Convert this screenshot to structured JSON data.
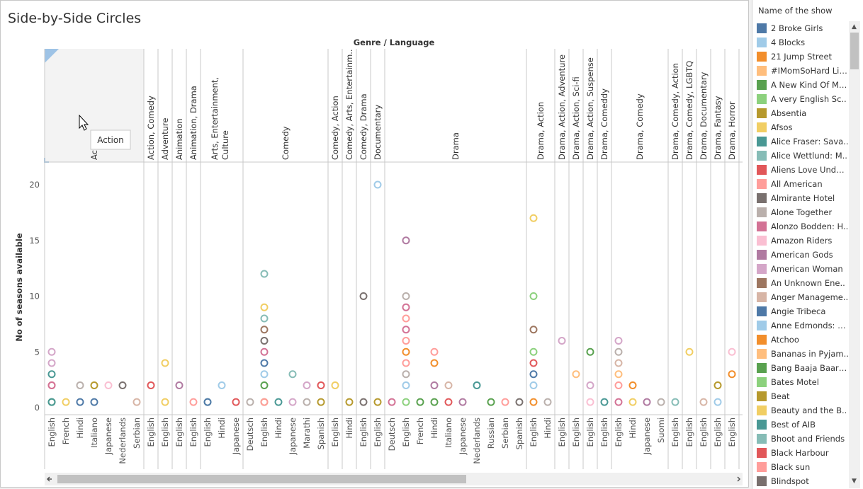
{
  "title": "Side-by-Side Circles",
  "tooltip": "Action",
  "legend": {
    "title": "Name of the show",
    "items": [
      {
        "label": "2 Broke Girls",
        "color": "#4e79a7"
      },
      {
        "label": "4 Blocks",
        "color": "#a0cbe8"
      },
      {
        "label": "21 Jump Street",
        "color": "#f28e2b"
      },
      {
        "label": "#IMomSoHard Live",
        "color": "#ffbe7d"
      },
      {
        "label": "A New Kind Of Ma..",
        "color": "#59a14f"
      },
      {
        "label": "A very English Sc..",
        "color": "#8cd17d"
      },
      {
        "label": "Absentia",
        "color": "#b6992d"
      },
      {
        "label": "Afsos",
        "color": "#f1ce63"
      },
      {
        "label": "Alice Fraser: Sava..",
        "color": "#499894"
      },
      {
        "label": "Alice Wettlund: M..",
        "color": "#86bcb6"
      },
      {
        "label": "Aliens Love Under..",
        "color": "#e15759"
      },
      {
        "label": "All American",
        "color": "#ff9d9a"
      },
      {
        "label": "Almirante Hotel",
        "color": "#79706e"
      },
      {
        "label": "Alone Together",
        "color": "#bab0ac"
      },
      {
        "label": "Alonzo Bodden: H..",
        "color": "#d37295"
      },
      {
        "label": "Amazon Riders",
        "color": "#fabfd2"
      },
      {
        "label": "American Gods",
        "color": "#b07aa1"
      },
      {
        "label": "American Woman",
        "color": "#d4a6c8"
      },
      {
        "label": "An Unknown Ene..",
        "color": "#9d7660"
      },
      {
        "label": "Anger Manageme..",
        "color": "#d7b5a6"
      },
      {
        "label": "Angie Tribeca",
        "color": "#4e79a7"
      },
      {
        "label": "Anne Edmonds: W..",
        "color": "#a0cbe8"
      },
      {
        "label": "Atchoo",
        "color": "#f28e2b"
      },
      {
        "label": "Bananas in Pyjam..",
        "color": "#ffbe7d"
      },
      {
        "label": "Bang Baaja Baara..",
        "color": "#59a14f"
      },
      {
        "label": "Bates Motel",
        "color": "#8cd17d"
      },
      {
        "label": "Beat",
        "color": "#b6992d"
      },
      {
        "label": "Beauty and the B..",
        "color": "#f1ce63"
      },
      {
        "label": "Best of AIB",
        "color": "#499894"
      },
      {
        "label": "Bhoot and Friends",
        "color": "#86bcb6"
      },
      {
        "label": "Black Harbour",
        "color": "#e15759"
      },
      {
        "label": "Black sun",
        "color": "#ff9d9a"
      },
      {
        "label": "Blindspot",
        "color": "#79706e"
      }
    ]
  },
  "chart_data": {
    "type": "scatter",
    "column_header_title": "Genre / Language",
    "ylabel": "No of seasons available",
    "ylim": [
      0,
      22
    ],
    "yticks": [
      0,
      5,
      10,
      15,
      20
    ],
    "groups": [
      {
        "genre": "Action",
        "header_text": "Ac",
        "languages": [
          "English",
          "French",
          "Hindi",
          "Italiano",
          "Japanese",
          "Nederlands",
          "Serbian"
        ]
      },
      {
        "genre": "Action, Comedy",
        "languages": [
          "English"
        ]
      },
      {
        "genre": "Adventure",
        "languages": [
          "English"
        ]
      },
      {
        "genre": "Animation",
        "languages": [
          "English"
        ]
      },
      {
        "genre": "Animation, Drama",
        "languages": [
          "English"
        ]
      },
      {
        "genre": "Arts, Entertainment, Culture",
        "lines": [
          "Arts, Entertainment,",
          "Culture"
        ],
        "languages": [
          "English",
          "Hindi",
          "Japanese"
        ]
      },
      {
        "genre": "Comedy",
        "languages": [
          "Deutsch",
          "English",
          "Hindi",
          "Japanese",
          "Marathi",
          "Spanish"
        ]
      },
      {
        "genre": "Comedy, Action",
        "languages": [
          "English"
        ]
      },
      {
        "genre": "Comedy, Arts, Entertainm..",
        "languages": [
          "Hindi"
        ]
      },
      {
        "genre": "Comedy, Drama",
        "languages": [
          "English"
        ]
      },
      {
        "genre": "Documentary",
        "languages": [
          "English"
        ]
      },
      {
        "genre": "Drama",
        "languages": [
          "Deutsch",
          "English",
          "French",
          "Hindi",
          "Italiano",
          "Japanese",
          "Nederlands",
          "Russian",
          "Serbian",
          "Spanish"
        ]
      },
      {
        "genre": "Drama, Action",
        "languages": [
          "English",
          "Hindi"
        ]
      },
      {
        "genre": "Drama, Action, Adventure",
        "languages": [
          "English"
        ]
      },
      {
        "genre": "Drama, Action, Sci-fi",
        "languages": [
          "English"
        ]
      },
      {
        "genre": "Drama, Action, Suspense",
        "languages": [
          "English"
        ]
      },
      {
        "genre": "Drama, Comeddy",
        "languages": [
          "English"
        ]
      },
      {
        "genre": "Drama, Comedy",
        "languages": [
          "English",
          "Hindi",
          "Japanese",
          "Suomi"
        ]
      },
      {
        "genre": "Drama, Comedy, Action",
        "languages": [
          "English"
        ]
      },
      {
        "genre": "Drama, Comedy, LGBTQ",
        "languages": [
          "English"
        ]
      },
      {
        "genre": "Drama, Documentary",
        "languages": [
          "English"
        ]
      },
      {
        "genre": "Drama, Fantasy",
        "languages": [
          "English"
        ]
      },
      {
        "genre": "Drama, Horror",
        "languages": [
          "English"
        ]
      }
    ],
    "points": [
      {
        "col": 0,
        "y": 5,
        "c": "#d4a6c8"
      },
      {
        "col": 0,
        "y": 4,
        "c": "#d4a6c8"
      },
      {
        "col": 0,
        "y": 3,
        "c": "#499894"
      },
      {
        "col": 0,
        "y": 2,
        "c": "#ff9d9a"
      },
      {
        "col": 0,
        "y": 2,
        "c": "#d37295"
      },
      {
        "col": 0,
        "y": 0.5,
        "c": "#59a14f"
      },
      {
        "col": 0,
        "y": 0.5,
        "c": "#499894"
      },
      {
        "col": 1,
        "y": 0.5,
        "c": "#f1ce63"
      },
      {
        "col": 2,
        "y": 0.5,
        "c": "#4e79a7"
      },
      {
        "col": 2,
        "y": 2,
        "c": "#bab0ac"
      },
      {
        "col": 3,
        "y": 0.5,
        "c": "#4e79a7"
      },
      {
        "col": 3,
        "y": 2,
        "c": "#b6992d"
      },
      {
        "col": 4,
        "y": 2,
        "c": "#fabfd2"
      },
      {
        "col": 5,
        "y": 2,
        "c": "#79706e"
      },
      {
        "col": 6,
        "y": 0.5,
        "c": "#d7b5a6"
      },
      {
        "col": 7,
        "y": 2,
        "c": "#e15759"
      },
      {
        "col": 8,
        "y": 4,
        "c": "#f1ce63"
      },
      {
        "col": 8,
        "y": 0.5,
        "c": "#f1ce63"
      },
      {
        "col": 9,
        "y": 2,
        "c": "#b07aa1"
      },
      {
        "col": 10,
        "y": 0.5,
        "c": "#ff9d9a"
      },
      {
        "col": 11,
        "y": 0.5,
        "c": "#86bcb6"
      },
      {
        "col": 11,
        "y": 0.5,
        "c": "#4e79a7"
      },
      {
        "col": 12,
        "y": 2,
        "c": "#a0cbe8"
      },
      {
        "col": 13,
        "y": 0.5,
        "c": "#e15759"
      },
      {
        "col": 14,
        "y": 0.5,
        "c": "#bab0ac"
      },
      {
        "col": 15,
        "y": 12,
        "c": "#86bcb6"
      },
      {
        "col": 15,
        "y": 9,
        "c": "#f1ce63"
      },
      {
        "col": 15,
        "y": 8,
        "c": "#86bcb6"
      },
      {
        "col": 15,
        "y": 7,
        "c": "#9d7660"
      },
      {
        "col": 15,
        "y": 6,
        "c": "#79706e"
      },
      {
        "col": 15,
        "y": 5,
        "c": "#d37295"
      },
      {
        "col": 15,
        "y": 4,
        "c": "#4e79a7"
      },
      {
        "col": 15,
        "y": 3,
        "c": "#a0cbe8"
      },
      {
        "col": 15,
        "y": 2,
        "c": "#59a14f"
      },
      {
        "col": 15,
        "y": 0.5,
        "c": "#b6992d"
      },
      {
        "col": 15,
        "y": 0.5,
        "c": "#ff9d9a"
      },
      {
        "col": 16,
        "y": 0.5,
        "c": "#499894"
      },
      {
        "col": 17,
        "y": 3,
        "c": "#86bcb6"
      },
      {
        "col": 17,
        "y": 0.5,
        "c": "#d4a6c8"
      },
      {
        "col": 18,
        "y": 2,
        "c": "#d4a6c8"
      },
      {
        "col": 18,
        "y": 0.5,
        "c": "#bab0ac"
      },
      {
        "col": 19,
        "y": 2,
        "c": "#e15759"
      },
      {
        "col": 19,
        "y": 0.5,
        "c": "#b6992d"
      },
      {
        "col": 20,
        "y": 2,
        "c": "#f1ce63"
      },
      {
        "col": 21,
        "y": 0.5,
        "c": "#b6992d"
      },
      {
        "col": 22,
        "y": 10,
        "c": "#79706e"
      },
      {
        "col": 22,
        "y": 0.5,
        "c": "#79706e"
      },
      {
        "col": 23,
        "y": 20,
        "c": "#a0cbe8"
      },
      {
        "col": 23,
        "y": 0.5,
        "c": "#b6992d"
      },
      {
        "col": 24,
        "y": 0.5,
        "c": "#d37295"
      },
      {
        "col": 25,
        "y": 15,
        "c": "#b07aa1"
      },
      {
        "col": 25,
        "y": 10,
        "c": "#bab0ac"
      },
      {
        "col": 25,
        "y": 9,
        "c": "#d37295"
      },
      {
        "col": 25,
        "y": 8,
        "c": "#ff9d9a"
      },
      {
        "col": 25,
        "y": 7,
        "c": "#d37295"
      },
      {
        "col": 25,
        "y": 6,
        "c": "#ff9d9a"
      },
      {
        "col": 25,
        "y": 5,
        "c": "#f28e2b"
      },
      {
        "col": 25,
        "y": 4,
        "c": "#ff9d9a"
      },
      {
        "col": 25,
        "y": 3,
        "c": "#bab0ac"
      },
      {
        "col": 25,
        "y": 2,
        "c": "#a0cbe8"
      },
      {
        "col": 25,
        "y": 0.5,
        "c": "#8cd17d"
      },
      {
        "col": 26,
        "y": 0.5,
        "c": "#59a14f"
      },
      {
        "col": 27,
        "y": 5,
        "c": "#ff9d9a"
      },
      {
        "col": 27,
        "y": 4,
        "c": "#f28e2b"
      },
      {
        "col": 27,
        "y": 2,
        "c": "#b07aa1"
      },
      {
        "col": 27,
        "y": 0.5,
        "c": "#59a14f"
      },
      {
        "col": 28,
        "y": 2,
        "c": "#d7b5a6"
      },
      {
        "col": 28,
        "y": 0.5,
        "c": "#e15759"
      },
      {
        "col": 29,
        "y": 0.5,
        "c": "#b07aa1"
      },
      {
        "col": 30,
        "y": 2,
        "c": "#499894"
      },
      {
        "col": 31,
        "y": 0.5,
        "c": "#59a14f"
      },
      {
        "col": 32,
        "y": 0.5,
        "c": "#ff9d9a"
      },
      {
        "col": 33,
        "y": 0.5,
        "c": "#79706e"
      },
      {
        "col": 34,
        "y": 17,
        "c": "#f1ce63"
      },
      {
        "col": 34,
        "y": 10,
        "c": "#8cd17d"
      },
      {
        "col": 34,
        "y": 7,
        "c": "#9d7660"
      },
      {
        "col": 34,
        "y": 5,
        "c": "#8cd17d"
      },
      {
        "col": 34,
        "y": 4,
        "c": "#e15759"
      },
      {
        "col": 34,
        "y": 3,
        "c": "#4e79a7"
      },
      {
        "col": 34,
        "y": 2,
        "c": "#a0cbe8"
      },
      {
        "col": 34,
        "y": 0.5,
        "c": "#f28e2b"
      },
      {
        "col": 35,
        "y": 0.5,
        "c": "#bab0ac"
      },
      {
        "col": 36,
        "y": 6,
        "c": "#d4a6c8"
      },
      {
        "col": 37,
        "y": 3,
        "c": "#ffbe7d"
      },
      {
        "col": 38,
        "y": 5,
        "c": "#59a14f"
      },
      {
        "col": 38,
        "y": 2,
        "c": "#d4a6c8"
      },
      {
        "col": 38,
        "y": 0.5,
        "c": "#fabfd2"
      },
      {
        "col": 39,
        "y": 0.5,
        "c": "#499894"
      },
      {
        "col": 40,
        "y": 6,
        "c": "#d4a6c8"
      },
      {
        "col": 40,
        "y": 5,
        "c": "#bab0ac"
      },
      {
        "col": 40,
        "y": 4,
        "c": "#d7b5a6"
      },
      {
        "col": 40,
        "y": 3,
        "c": "#ffbe7d"
      },
      {
        "col": 40,
        "y": 2,
        "c": "#ff9d9a"
      },
      {
        "col": 40,
        "y": 0.5,
        "c": "#d37295"
      },
      {
        "col": 41,
        "y": 2,
        "c": "#f28e2b"
      },
      {
        "col": 41,
        "y": 0.5,
        "c": "#f1ce63"
      },
      {
        "col": 42,
        "y": 0.5,
        "c": "#b07aa1"
      },
      {
        "col": 43,
        "y": 0.5,
        "c": "#bab0ac"
      },
      {
        "col": 44,
        "y": 0.5,
        "c": "#86bcb6"
      },
      {
        "col": 45,
        "y": 5,
        "c": "#f1ce63"
      },
      {
        "col": 46,
        "y": 0.5,
        "c": "#d7b5a6"
      },
      {
        "col": 47,
        "y": 2,
        "c": "#b6992d"
      },
      {
        "col": 47,
        "y": 0.5,
        "c": "#a0cbe8"
      },
      {
        "col": 48,
        "y": 5,
        "c": "#fabfd2"
      },
      {
        "col": 48,
        "y": 3,
        "c": "#f28e2b"
      }
    ]
  }
}
